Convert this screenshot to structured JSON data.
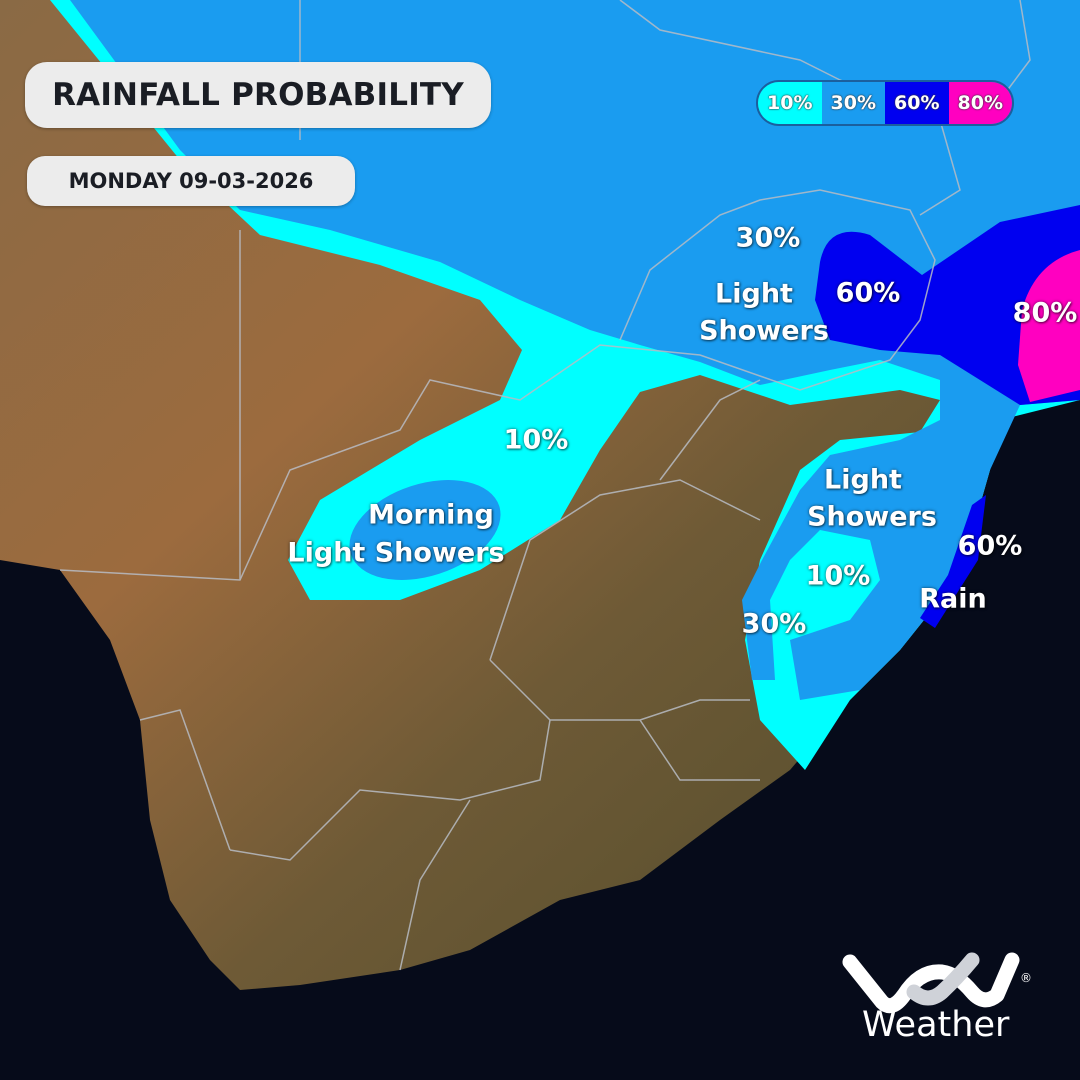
{
  "title": "RAINFALL PROBABILITY",
  "date": "MONDAY 09-03-2026",
  "legend": [
    {
      "label": "10%",
      "color": "#00ffff"
    },
    {
      "label": "30%",
      "color": "#1a9cf0"
    },
    {
      "label": "60%",
      "color": "#0000f0"
    },
    {
      "label": "80%",
      "color": "#ff00c0"
    }
  ],
  "labels": {
    "ne_30": "30%",
    "ne_showers_1": "Light",
    "ne_showers_2": "Showers",
    "ne_60": "60%",
    "ne_80": "80%",
    "central_10": "10%",
    "west_1": "Morning",
    "west_2": "Light Showers",
    "east_showers_1": "Light",
    "east_showers_2": "Showers",
    "east_60": "60%",
    "east_10": "10%",
    "east_30": "30%",
    "east_rain": "Rain"
  },
  "brand": {
    "logo": "VOX",
    "name": "Weather"
  }
}
